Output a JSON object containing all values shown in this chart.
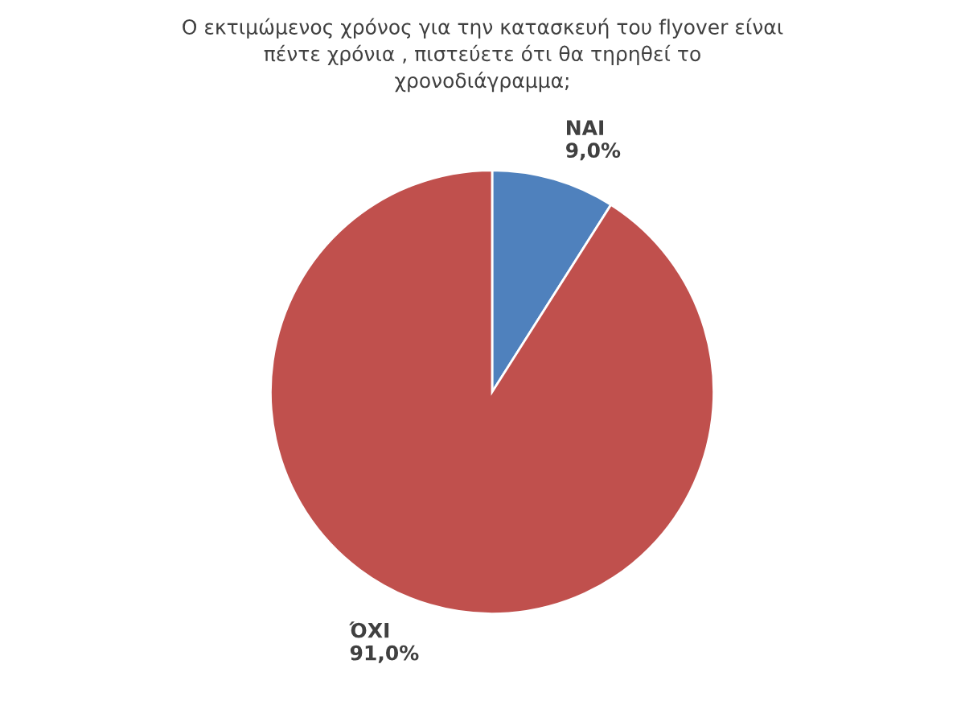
{
  "chart_data": {
    "type": "pie",
    "title": "Ο εκτιμώμενος χρόνος για την κατασκευή του flyover είναι\nπέντε χρόνια , πιστεύετε ότι θα τηρηθεί το\nχρονοδιάγραμμα;",
    "categories": [
      "ΝΑΙ",
      "ΌΧΙ"
    ],
    "values": [
      9.0,
      91.0
    ],
    "colors": [
      "#4f81bd",
      "#c0504d"
    ],
    "value_labels": [
      "9,0%",
      "91,0%"
    ],
    "legend": false
  }
}
